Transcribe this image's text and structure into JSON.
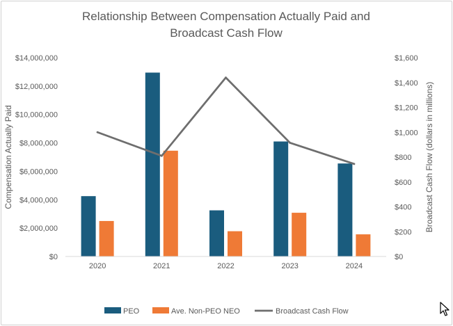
{
  "chart_data": {
    "type": "bar",
    "title_lines": [
      "Relationship Between Compensation Actually Paid and",
      "Broadcast Cash Flow"
    ],
    "categories": [
      "2020",
      "2021",
      "2022",
      "2023",
      "2024"
    ],
    "series": [
      {
        "name": "PEO",
        "kind": "bar",
        "axis": "left",
        "color": "#1a5c7e",
        "values": [
          4250000,
          12950000,
          3250000,
          8100000,
          6550000
        ]
      },
      {
        "name": "Ave. Non-PEO NEO",
        "kind": "bar",
        "axis": "left",
        "color": "#ef7a36",
        "values": [
          2500000,
          7450000,
          1780000,
          3080000,
          1560000
        ]
      },
      {
        "name": "Broadcast Cash Flow",
        "kind": "line",
        "axis": "right",
        "color": "#6e6e6e",
        "values": [
          1000,
          810,
          1440,
          915,
          745
        ]
      }
    ],
    "ylabel": "Compensation Actually Paid",
    "y2label": "Broadcast Cash Flow (dollars in millions)",
    "ylim": [
      0,
      14000000
    ],
    "y2lim": [
      0,
      1600
    ],
    "yticks": [
      "$0",
      "$2,000,000",
      "$4,000,000",
      "$6,000,000",
      "$8,000,000",
      "$10,000,000",
      "$12,000,000",
      "$14,000,000"
    ],
    "y2ticks": [
      "$0",
      "$200",
      "$400",
      "$600",
      "$800",
      "$1,000",
      "$1,200",
      "$1,400",
      "$1,600"
    ],
    "legend_position": "bottom",
    "grid": false
  }
}
